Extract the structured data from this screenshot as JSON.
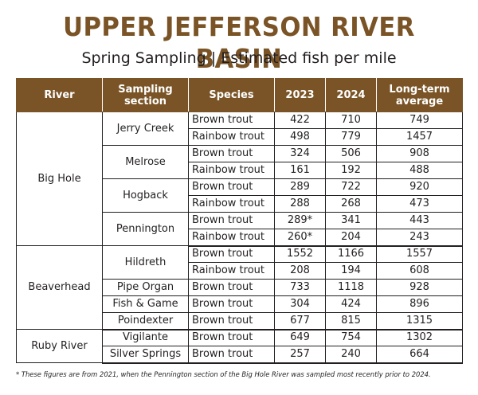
{
  "title": "UPPER JEFFERSON RIVER BASIN",
  "subtitle": "Spring Sampling | Estimated fish per mile",
  "table": {
    "headers": {
      "river": "River",
      "section": "Sampling section",
      "species": "Species",
      "y2023": "2023",
      "y2024": "2024",
      "average": "Long-term average"
    },
    "rows": [
      {
        "river": "Big Hole",
        "section": "Jerry Creek",
        "species": "Brown trout",
        "y2023": "422",
        "y2024": "710",
        "average": "749"
      },
      {
        "river": "Big Hole",
        "section": "Jerry Creek",
        "species": "Rainbow trout",
        "y2023": "498",
        "y2024": "779",
        "average": "1457"
      },
      {
        "river": "Big Hole",
        "section": "Melrose",
        "species": "Brown trout",
        "y2023": "324",
        "y2024": "506",
        "average": "908"
      },
      {
        "river": "Big Hole",
        "section": "Melrose",
        "species": "Rainbow trout",
        "y2023": "161",
        "y2024": "192",
        "average": "488"
      },
      {
        "river": "Big Hole",
        "section": "Hogback",
        "species": "Brown trout",
        "y2023": "289",
        "y2024": "722",
        "average": "920"
      },
      {
        "river": "Big Hole",
        "section": "Hogback",
        "species": "Rainbow trout",
        "y2023": "288",
        "y2024": "268",
        "average": "473"
      },
      {
        "river": "Big Hole",
        "section": "Pennington",
        "species": "Brown trout",
        "y2023": "289*",
        "y2024": "341",
        "average": "443"
      },
      {
        "river": "Big Hole",
        "section": "Pennington",
        "species": "Rainbow trout",
        "y2023": "260*",
        "y2024": "204",
        "average": "243"
      },
      {
        "river": "Beaverhead",
        "section": "Hildreth",
        "species": "Brown trout",
        "y2023": "1552",
        "y2024": "1166",
        "average": "1557"
      },
      {
        "river": "Beaverhead",
        "section": "Hildreth",
        "species": "Rainbow trout",
        "y2023": "208",
        "y2024": "194",
        "average": "608"
      },
      {
        "river": "Beaverhead",
        "section": "Pipe Organ",
        "species": "Brown trout",
        "y2023": "733",
        "y2024": "1118",
        "average": "928"
      },
      {
        "river": "Beaverhead",
        "section": "Fish & Game",
        "species": "Brown trout",
        "y2023": "304",
        "y2024": "424",
        "average": "896"
      },
      {
        "river": "Beaverhead",
        "section": "Poindexter",
        "species": "Brown trout",
        "y2023": "677",
        "y2024": "815",
        "average": "1315"
      },
      {
        "river": "Ruby River",
        "section": "Vigilante",
        "species": "Brown trout",
        "y2023": "649",
        "y2024": "754",
        "average": "1302"
      },
      {
        "river": "Ruby River",
        "section": "Silver Springs",
        "species": "Brown trout",
        "y2023": "257",
        "y2024": "240",
        "average": "664"
      }
    ]
  },
  "footnote": "* These figures are from 2021, when the Pennington section of the Big Hole River was sampled most recently prior to 2024.",
  "colors": {
    "accent": "#7a5426",
    "text": "#231f20",
    "header_text": "#ffffff"
  }
}
